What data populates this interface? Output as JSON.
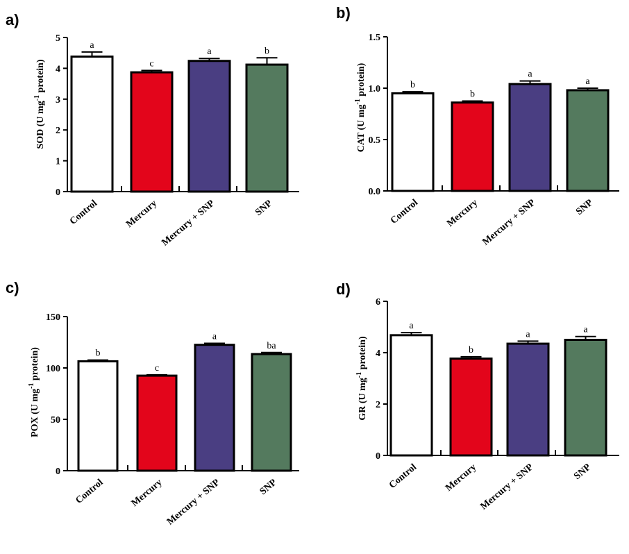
{
  "chart_data": [
    {
      "panel": "a)",
      "type": "bar",
      "categories": [
        "Control",
        "Mercury",
        "Mercury + SNP",
        "SNP"
      ],
      "values": [
        4.38,
        3.87,
        4.24,
        4.12
      ],
      "errors": [
        0.15,
        0.06,
        0.08,
        0.22
      ],
      "significance": [
        "a",
        "c",
        "a",
        "b"
      ],
      "colors": [
        "#ffffff",
        "#e3051b",
        "#4a3e82",
        "#547a5e"
      ],
      "ylabel_main": "SOD (U mg",
      "ylabel_sup": "-1",
      "ylabel_tail": " protein)",
      "ylim": [
        0,
        5
      ],
      "yticks": [
        0,
        1,
        2,
        3,
        4,
        5
      ],
      "ytick_labels": [
        "0",
        "1",
        "2",
        "3",
        "4",
        "5"
      ]
    },
    {
      "panel": "b)",
      "type": "bar",
      "categories": [
        "Control",
        "Mercury",
        "Mercury + SNP",
        "SNP"
      ],
      "values": [
        0.95,
        0.86,
        1.04,
        0.98
      ],
      "errors": [
        0.015,
        0.015,
        0.03,
        0.02
      ],
      "significance": [
        "b",
        "b",
        "a",
        "a"
      ],
      "colors": [
        "#ffffff",
        "#e3051b",
        "#4a3e82",
        "#547a5e"
      ],
      "ylabel_main": "CAT (U mg",
      "ylabel_sup": "-1",
      "ylabel_tail": " protein)",
      "ylim": [
        0,
        1.5
      ],
      "yticks": [
        0,
        0.5,
        1.0,
        1.5
      ],
      "ytick_labels": [
        "0.0",
        "0.5",
        "1.0",
        "1.5"
      ]
    },
    {
      "panel": "c)",
      "type": "bar",
      "categories": [
        "Control",
        "Mercury",
        "Mercury + SNP",
        "SNP"
      ],
      "values": [
        106.5,
        92.5,
        122.5,
        113.5
      ],
      "errors": [
        1.2,
        0.8,
        1.5,
        1.5
      ],
      "significance": [
        "b",
        "c",
        "a",
        "ba"
      ],
      "colors": [
        "#ffffff",
        "#e3051b",
        "#4a3e82",
        "#547a5e"
      ],
      "ylabel_main": "POX (U mg",
      "ylabel_sup": "-1",
      "ylabel_tail": " protein)",
      "ylim": [
        0,
        150
      ],
      "yticks": [
        0,
        50,
        100,
        150
      ],
      "ytick_labels": [
        "0",
        "50",
        "100",
        "150"
      ]
    },
    {
      "panel": "d)",
      "type": "bar",
      "categories": [
        "Control",
        "Mercury",
        "Mercury + SNP",
        "SNP"
      ],
      "values": [
        4.68,
        3.77,
        4.35,
        4.5
      ],
      "errors": [
        0.1,
        0.07,
        0.1,
        0.13
      ],
      "significance": [
        "a",
        "b",
        "a",
        "a"
      ],
      "colors": [
        "#ffffff",
        "#e3051b",
        "#4a3e82",
        "#547a5e"
      ],
      "ylabel_main": "GR (U mg",
      "ylabel_sup": "-1",
      "ylabel_tail": " protein)",
      "ylim": [
        0,
        6
      ],
      "yticks": [
        0,
        2,
        4,
        6
      ],
      "ytick_labels": [
        "0",
        "2",
        "4",
        "6"
      ]
    }
  ]
}
